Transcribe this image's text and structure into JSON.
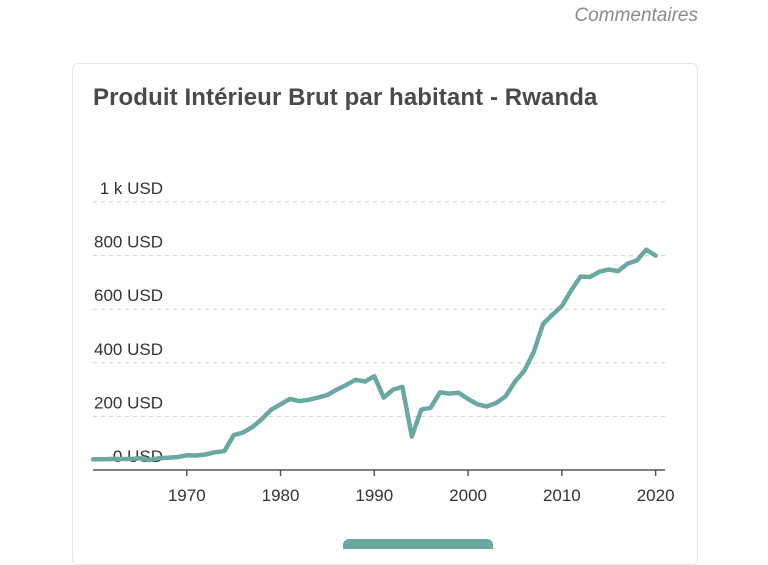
{
  "header": {
    "comments_link": "Commentaires"
  },
  "colors": {
    "line": "#6aa8a3",
    "grid": "#cfcfcf",
    "axis": "#555555",
    "button": "#6aa8a3"
  },
  "chart_data": {
    "type": "line",
    "title": "Produit Intérieur Brut par habitant - Rwanda",
    "xlabel": "",
    "ylabel": "",
    "xlim": [
      1960,
      2021
    ],
    "ylim": [
      0,
      1000
    ],
    "grid": true,
    "legend": "none",
    "y_ticks": [
      {
        "value": 0,
        "label": "0 USD"
      },
      {
        "value": 200,
        "label": "200 USD"
      },
      {
        "value": 400,
        "label": "400 USD"
      },
      {
        "value": 600,
        "label": "600 USD"
      },
      {
        "value": 800,
        "label": "800 USD"
      },
      {
        "value": 1000,
        "label": "1 k USD"
      }
    ],
    "x_ticks": [
      {
        "value": 1970,
        "label": "1970"
      },
      {
        "value": 1980,
        "label": "1980"
      },
      {
        "value": 1990,
        "label": "1990"
      },
      {
        "value": 2000,
        "label": "2000"
      },
      {
        "value": 2010,
        "label": "2010"
      },
      {
        "value": 2020,
        "label": "2020"
      }
    ],
    "series": [
      {
        "x": [
          1960,
          1961,
          1962,
          1963,
          1964,
          1965,
          1966,
          1967,
          1968,
          1969,
          1970,
          1971,
          1972,
          1973,
          1974,
          1975,
          1976,
          1977,
          1978,
          1979,
          1980,
          1981,
          1982,
          1983,
          1984,
          1985,
          1986,
          1987,
          1988,
          1989,
          1990,
          1991,
          1992,
          1993,
          1994,
          1995,
          1996,
          1997,
          1998,
          1999,
          2000,
          2001,
          2002,
          2003,
          2004,
          2005,
          2006,
          2007,
          2008,
          2009,
          2010,
          2011,
          2012,
          2013,
          2014,
          2015,
          2016,
          2017,
          2018,
          2019,
          2020
        ],
        "values": [
          40,
          40,
          41,
          41,
          41,
          44,
          37,
          44,
          46,
          48,
          55,
          54,
          58,
          66,
          70,
          130,
          140,
          160,
          190,
          225,
          245,
          265,
          257,
          262,
          270,
          280,
          300,
          317,
          337,
          330,
          350,
          270,
          300,
          310,
          125,
          225,
          232,
          290,
          285,
          288,
          265,
          245,
          237,
          250,
          275,
          330,
          370,
          440,
          545,
          580,
          612,
          670,
          722,
          720,
          740,
          748,
          742,
          770,
          782,
          822,
          800
        ]
      }
    ]
  },
  "footer": {
    "button_label": ""
  }
}
